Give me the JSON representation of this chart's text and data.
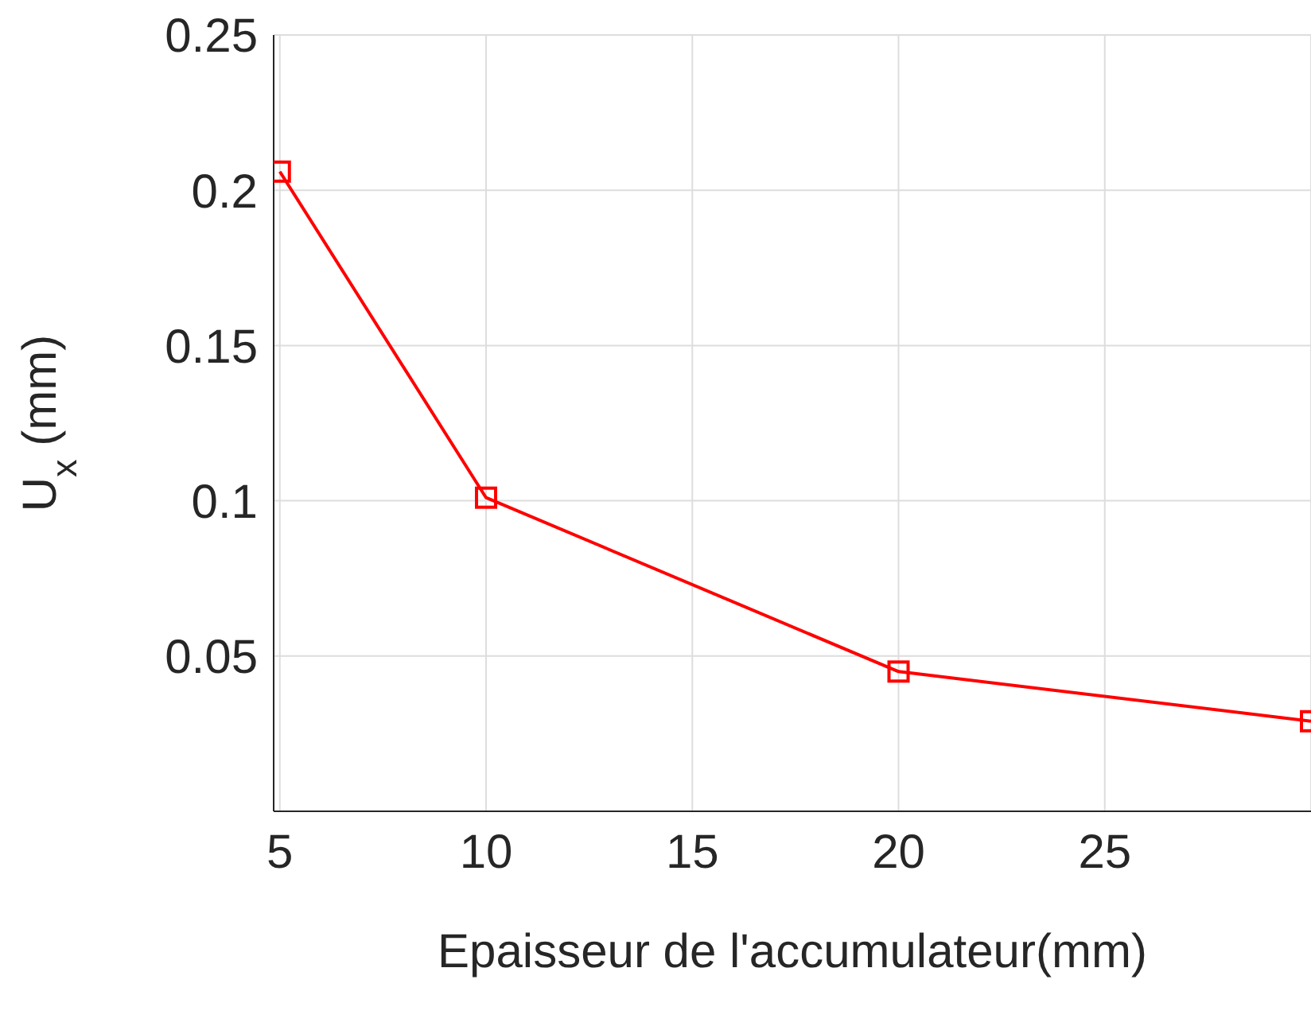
{
  "chart_data": {
    "type": "line",
    "xlabel": "Epaisseur de l'accumulateur(mm)",
    "ylabel": "U$_{x}$ (mm)",
    "x": [
      5,
      10,
      20,
      30
    ],
    "series": [
      {
        "color": "#ff0000",
        "values": [
          0.206,
          0.101,
          0.045,
          0.029
        ]
      }
    ],
    "xlim": [
      4.85,
      30
    ],
    "xticks": [
      5,
      10,
      15,
      20,
      25
    ],
    "ylim": [
      0,
      0.25
    ],
    "yticks": [
      0.05,
      0.1,
      0.15,
      0.2,
      0.25
    ],
    "grid": true,
    "marker": "square",
    "line_style": "solid"
  }
}
